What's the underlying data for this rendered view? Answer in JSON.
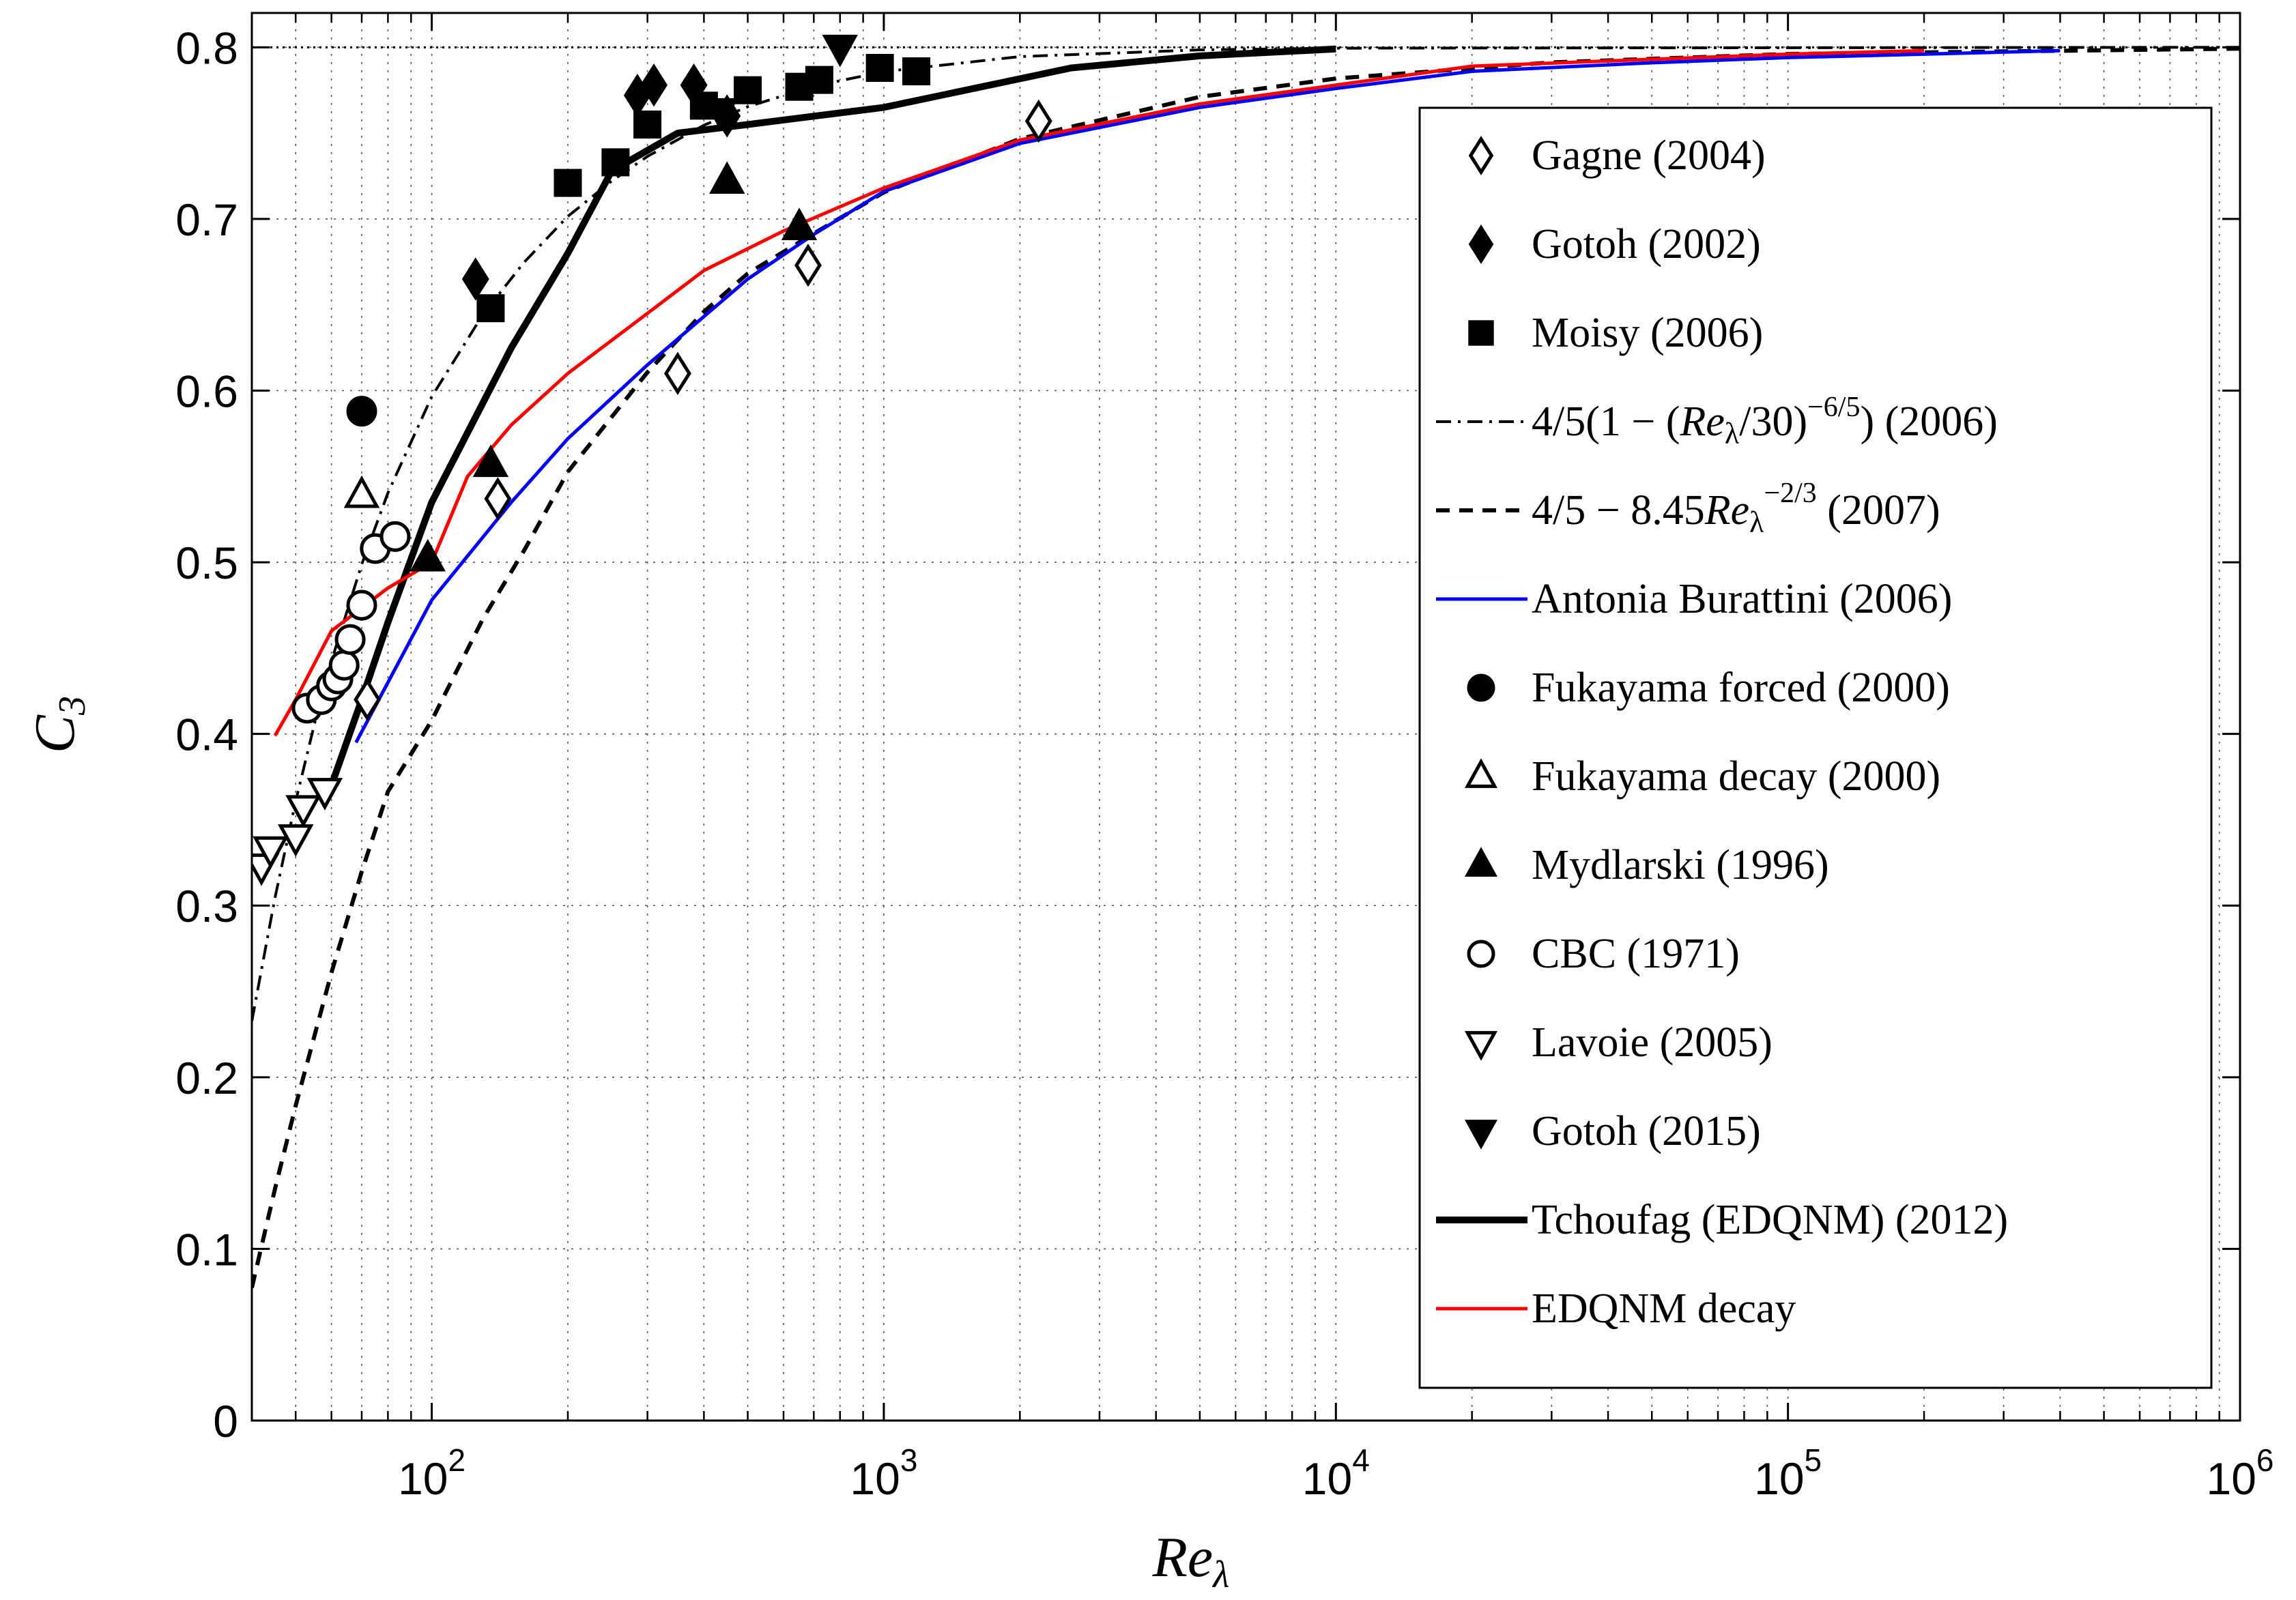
{
  "chart_data": {
    "type": "line",
    "title": "",
    "xlabel": "Re_λ",
    "xlabel_main": "Re",
    "xlabel_sub": "λ",
    "ylabel": "C_3",
    "ylabel_main": "C",
    "ylabel_sub": "3",
    "xscale": "log",
    "xlim": [
      40,
      1000000
    ],
    "ylim": [
      0,
      0.82
    ],
    "grid": true,
    "legend_position": "right",
    "x_ticks": [
      {
        "value": 100,
        "base": "10",
        "exp": "2"
      },
      {
        "value": 1000,
        "base": "10",
        "exp": "3"
      },
      {
        "value": 10000,
        "base": "10",
        "exp": "4"
      },
      {
        "value": 100000,
        "base": "10",
        "exp": "5"
      },
      {
        "value": 1000000,
        "base": "10",
        "exp": "6"
      }
    ],
    "y_ticks": [
      {
        "value": 0,
        "label": "0"
      },
      {
        "value": 0.1,
        "label": "0.1"
      },
      {
        "value": 0.2,
        "label": "0.2"
      },
      {
        "value": 0.3,
        "label": "0.3"
      },
      {
        "value": 0.4,
        "label": "0.4"
      },
      {
        "value": 0.5,
        "label": "0.5"
      },
      {
        "value": 0.6,
        "label": "0.6"
      },
      {
        "value": 0.7,
        "label": "0.7"
      },
      {
        "value": 0.8,
        "label": "0.8"
      }
    ],
    "series": [
      {
        "name": "Gagne (2004)",
        "kind": "marker",
        "marker": "diamond-open",
        "color": "#000000",
        "points": [
          [
            72,
            0.42
          ],
          [
            140,
            0.537
          ],
          [
            350,
            0.61
          ],
          [
            680,
            0.673
          ],
          [
            2200,
            0.757
          ]
        ]
      },
      {
        "name": "Gotoh (2002)",
        "kind": "marker",
        "marker": "diamond-filled",
        "color": "#000000",
        "points": [
          [
            125,
            0.665
          ],
          [
            285,
            0.772
          ],
          [
            310,
            0.778
          ],
          [
            380,
            0.778
          ],
          [
            450,
            0.76
          ]
        ]
      },
      {
        "name": "Moisy (2006)",
        "kind": "marker",
        "marker": "square-filled",
        "color": "#000000",
        "points": [
          [
            135,
            0.648
          ],
          [
            200,
            0.721
          ],
          [
            255,
            0.733
          ],
          [
            300,
            0.755
          ],
          [
            400,
            0.766
          ],
          [
            500,
            0.775
          ],
          [
            650,
            0.777
          ],
          [
            720,
            0.781
          ],
          [
            980,
            0.788
          ],
          [
            1180,
            0.786
          ]
        ]
      },
      {
        "name": "4/5(1 − (Re_λ/30)^(−6/5)) (2006)",
        "kind": "line",
        "style": "dashdot",
        "color": "#000000",
        "legend_parts": {
          "a": "4/5(1 − (",
          "b": "Re",
          "c": "λ",
          "d": "/30)",
          "e": "−6/5",
          "f": ") (2006)"
        },
        "points": [
          [
            40,
            0.2327
          ],
          [
            45,
            0.3046
          ],
          [
            50,
            0.3607
          ],
          [
            55,
            0.4056
          ],
          [
            60,
            0.4424
          ],
          [
            70,
            0.4988
          ],
          [
            80,
            0.5404
          ],
          [
            100,
            0.5965
          ],
          [
            130,
            0.6446
          ],
          [
            160,
            0.6747
          ],
          [
            200,
            0.7015
          ],
          [
            250,
            0.7221
          ],
          [
            300,
            0.7364
          ],
          [
            400,
            0.7546
          ],
          [
            500,
            0.7654
          ],
          [
            700,
            0.7773
          ],
          [
            1000,
            0.7858
          ],
          [
            2000,
            0.7946
          ],
          [
            5000,
            0.7985
          ],
          [
            10000,
            0.7995
          ],
          [
            1000000,
            0.8
          ]
        ]
      },
      {
        "name": "4/5 − 8.45Re_λ^(−2/3) (2007)",
        "kind": "line",
        "style": "dashed",
        "color": "#000000",
        "legend_parts": {
          "a": "4/5 − 8.45",
          "b": "Re",
          "c": "λ",
          "e": "−2/3",
          "f": " (2007)"
        },
        "points": [
          [
            40,
            0.0774
          ],
          [
            45,
            0.135
          ],
          [
            50,
            0.1834
          ],
          [
            60,
            0.2609
          ],
          [
            70,
            0.3198
          ],
          [
            80,
            0.3664
          ],
          [
            100,
            0.4079
          ],
          [
            130,
            0.4674
          ],
          [
            160,
            0.5068
          ],
          [
            200,
            0.5527
          ],
          [
            300,
            0.6107
          ],
          [
            400,
            0.646
          ],
          [
            500,
            0.6682
          ],
          [
            700,
            0.6915
          ],
          [
            1000,
            0.7155
          ],
          [
            2000,
            0.7467
          ],
          [
            5000,
            0.7711
          ],
          [
            10000,
            0.7818
          ],
          [
            30000,
            0.7912
          ],
          [
            100000,
            0.7961
          ],
          [
            1000000,
            0.7992
          ]
        ]
      },
      {
        "name": "Antonia Burattini (2006)",
        "kind": "line",
        "style": "solid",
        "color": "#0000ff",
        "points": [
          [
            68,
            0.395
          ],
          [
            80,
            0.43
          ],
          [
            100,
            0.478
          ],
          [
            150,
            0.535
          ],
          [
            200,
            0.572
          ],
          [
            300,
            0.615
          ],
          [
            500,
            0.665
          ],
          [
            700,
            0.691
          ],
          [
            1000,
            0.716
          ],
          [
            2000,
            0.744
          ],
          [
            5000,
            0.765
          ],
          [
            10000,
            0.776
          ],
          [
            20000,
            0.786
          ],
          [
            50000,
            0.791
          ],
          [
            100000,
            0.794
          ],
          [
            400000,
            0.798
          ]
        ]
      },
      {
        "name": "Fukayama forced (2000)",
        "kind": "marker",
        "marker": "circle-filled",
        "color": "#000000",
        "points": [
          [
            70,
            0.588
          ]
        ]
      },
      {
        "name": "Fukayama decay (2000)",
        "kind": "marker",
        "marker": "triangle-up-open",
        "color": "#000000",
        "points": [
          [
            70,
            0.539
          ]
        ]
      },
      {
        "name": "Mydlarski (1996)",
        "kind": "marker",
        "marker": "triangle-up-filled",
        "color": "#000000",
        "points": [
          [
            98,
            0.502
          ],
          [
            135,
            0.557
          ],
          [
            450,
            0.722
          ],
          [
            650,
            0.695
          ]
        ]
      },
      {
        "name": "CBC (1971)",
        "kind": "marker",
        "marker": "circle-open",
        "color": "#000000",
        "points": [
          [
            53,
            0.415
          ],
          [
            57,
            0.42
          ],
          [
            60,
            0.428
          ],
          [
            62,
            0.432
          ],
          [
            64,
            0.44
          ],
          [
            66,
            0.455
          ],
          [
            70,
            0.475
          ],
          [
            75,
            0.508
          ],
          [
            83,
            0.515
          ]
        ]
      },
      {
        "name": "Lavoie (2005)",
        "kind": "marker",
        "marker": "triangle-down-open",
        "color": "#000000",
        "points": [
          [
            42,
            0.323
          ],
          [
            44,
            0.333
          ],
          [
            50,
            0.34
          ],
          [
            52,
            0.357
          ],
          [
            58,
            0.367
          ]
        ]
      },
      {
        "name": "Gotoh (2015)",
        "kind": "marker",
        "marker": "triangle-down-filled",
        "color": "#000000",
        "points": [
          [
            435,
            0.763
          ],
          [
            800,
            0.8
          ]
        ]
      },
      {
        "name": "Tchoufag (EDQNM) (2012)",
        "kind": "line",
        "style": "solid-thick",
        "color": "#000000",
        "points": [
          [
            60,
            0.37
          ],
          [
            70,
            0.42
          ],
          [
            80,
            0.465
          ],
          [
            100,
            0.535
          ],
          [
            150,
            0.625
          ],
          [
            200,
            0.68
          ],
          [
            250,
            0.728
          ],
          [
            350,
            0.75
          ],
          [
            500,
            0.755
          ],
          [
            1000,
            0.765
          ],
          [
            2600,
            0.788
          ],
          [
            5000,
            0.795
          ],
          [
            10000,
            0.799
          ]
        ]
      },
      {
        "name": "EDQNM decay",
        "kind": "line",
        "style": "solid",
        "color": "#ff0000",
        "points": [
          [
            45,
            0.399
          ],
          [
            50,
            0.42
          ],
          [
            60,
            0.46
          ],
          [
            80,
            0.485
          ],
          [
            100,
            0.5
          ],
          [
            120,
            0.55
          ],
          [
            150,
            0.58
          ],
          [
            200,
            0.61
          ],
          [
            300,
            0.645
          ],
          [
            400,
            0.67
          ],
          [
            600,
            0.693
          ],
          [
            1000,
            0.718
          ],
          [
            2000,
            0.746
          ],
          [
            5000,
            0.767
          ],
          [
            10000,
            0.778
          ],
          [
            20000,
            0.789
          ],
          [
            50000,
            0.793
          ],
          [
            100000,
            0.796
          ],
          [
            200000,
            0.798
          ]
        ]
      }
    ],
    "reference_line": {
      "y": 0.8,
      "style": "dotted"
    }
  }
}
